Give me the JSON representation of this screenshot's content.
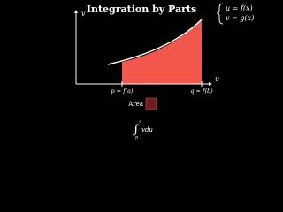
{
  "title": "Integration by Parts",
  "definitions": [
    "u = f(x)",
    "v = g(x)"
  ],
  "axes": {
    "y_label": "v",
    "x_label": "u"
  },
  "points": [
    "p = f(a)",
    "q = f(b)"
  ],
  "legend": {
    "label": "Area"
  },
  "integral": {
    "sign": "∫",
    "upper": "q",
    "lower": "p",
    "integrand": "vdu"
  }
}
